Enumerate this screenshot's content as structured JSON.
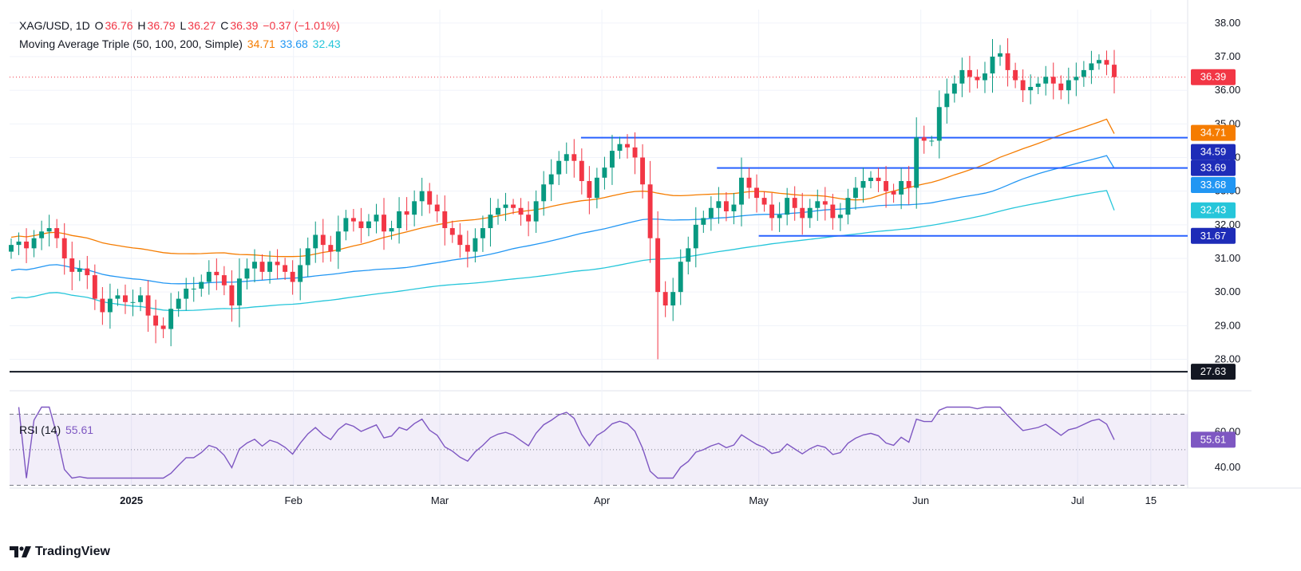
{
  "legend": {
    "symbol": "XAG/USD, 1D",
    "o_label": "O",
    "o": "36.76",
    "h_label": "H",
    "h": "36.79",
    "l_label": "L",
    "l": "36.27",
    "c_label": "C",
    "c": "36.39",
    "change": "−0.37 (−1.01%)",
    "ma_title": "Moving Average Triple (50, 100, 200, Simple)",
    "ma50": "34.71",
    "ma100": "33.68",
    "ma200": "32.43",
    "rsi_title": "RSI (14)",
    "rsi_value": "55.61"
  },
  "brand": "TradingView",
  "colors": {
    "up": "#089981",
    "down": "#f23645",
    "ma50": "#f57c00",
    "ma100": "#2196f3",
    "ma200": "#26c6da",
    "rsi": "#7e57c2",
    "hline": "#2962ff",
    "support": "#131722"
  },
  "chart_data": [
    {
      "type": "candlestick",
      "title": "XAG/USD, 1D",
      "x_ticks": [
        "2025",
        "Feb",
        "Mar",
        "Apr",
        "May",
        "Jun",
        "Jul",
        "15"
      ],
      "y_ticks": [
        28,
        29,
        30,
        31,
        32,
        33,
        34,
        35,
        36,
        37,
        38
      ],
      "y_tick_labels": [
        "28.00",
        "29.00",
        "30.00",
        "31.00",
        "32.00",
        "33.00",
        "34.00",
        "35.00",
        "36.00",
        "37.00",
        "38.00"
      ],
      "ylim": [
        27.3,
        38.4
      ],
      "grid": true,
      "x_dates": {
        "start": "2024-12-09",
        "end": "2025-07-08"
      },
      "close_series": [
        31.4,
        31.5,
        31.3,
        31.6,
        31.8,
        31.9,
        31.6,
        31.0,
        30.6,
        30.7,
        30.5,
        29.8,
        29.4,
        29.8,
        29.9,
        29.7,
        29.7,
        29.9,
        29.3,
        29.0,
        28.9,
        29.5,
        29.8,
        30.1,
        30.1,
        30.3,
        30.6,
        30.5,
        30.2,
        29.6,
        30.4,
        30.7,
        30.9,
        30.6,
        30.9,
        30.8,
        30.6,
        30.3,
        30.8,
        31.3,
        31.7,
        31.4,
        31.2,
        31.8,
        32.2,
        32.1,
        31.9,
        32.1,
        32.3,
        31.8,
        31.9,
        32.4,
        32.3,
        32.7,
        33.0,
        32.6,
        32.4,
        31.9,
        31.7,
        31.4,
        31.2,
        31.6,
        31.9,
        32.3,
        32.5,
        32.6,
        32.5,
        32.3,
        32.1,
        32.7,
        33.2,
        33.5,
        33.9,
        34.1,
        33.9,
        33.3,
        32.8,
        33.4,
        33.7,
        34.2,
        34.4,
        34.3,
        34.0,
        33.2,
        31.6,
        30.0,
        29.6,
        30.0,
        30.9,
        31.3,
        32.0,
        32.2,
        32.5,
        32.7,
        32.4,
        32.6,
        33.4,
        33.1,
        32.8,
        32.6,
        32.2,
        32.3,
        32.8,
        32.5,
        32.2,
        32.5,
        32.7,
        32.6,
        32.2,
        32.3,
        32.8,
        33.1,
        33.3,
        33.4,
        33.3,
        33.0,
        32.9,
        33.3,
        33.1,
        34.6,
        34.5,
        34.5,
        35.5,
        35.9,
        36.2,
        36.6,
        36.4,
        36.3,
        36.5,
        37.0,
        37.1,
        36.6,
        36.3,
        36.0,
        36.1,
        36.2,
        36.4,
        36.2,
        36.0,
        36.3,
        36.4,
        36.6,
        36.8,
        36.9,
        36.76,
        36.39
      ],
      "series": [
        {
          "name": "MA 50",
          "last": 34.71
        },
        {
          "name": "MA 100",
          "last": 33.68
        },
        {
          "name": "MA 200",
          "last": 32.43
        }
      ],
      "horizontal_levels": [
        34.59,
        33.69,
        31.67,
        27.63
      ],
      "price_tags": [
        36.39,
        34.71,
        34.59,
        33.69,
        33.68,
        32.43,
        31.67,
        27.63
      ],
      "annotations": {
        "last_close": 36.39,
        "low": 28.0,
        "high": 37.3
      }
    },
    {
      "type": "line",
      "title": "RSI (14)",
      "y_ticks": [
        40,
        60
      ],
      "y_tick_labels": [
        "40.00",
        "60.00"
      ],
      "ylim": [
        32,
        76
      ],
      "bands": [
        70,
        50,
        30
      ],
      "series": [
        {
          "name": "RSI (14)",
          "last": 55.61
        }
      ]
    }
  ]
}
